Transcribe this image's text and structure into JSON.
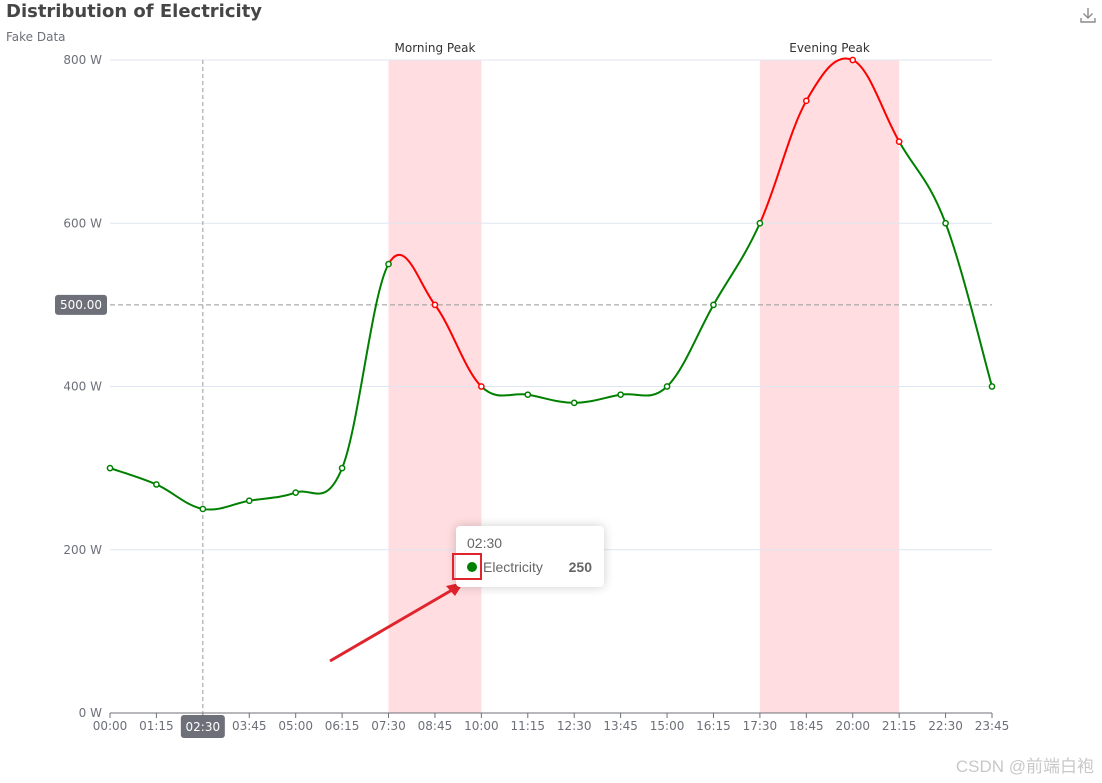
{
  "header": {
    "title": "Distribution of Electricity",
    "subtitle": "Fake Data",
    "download_icon": "download-icon"
  },
  "tooltip": {
    "time": "02:30",
    "series_name": "Electricity",
    "value": "250",
    "dot_color": "#008000"
  },
  "watermark": "CSDN @前端白袍",
  "colors": {
    "normal_line": "#008000",
    "peak_line": "#ff0000",
    "peak_band": "#ffdde0",
    "grid": "#e0e6f1",
    "axis_text": "#6e7079",
    "pointer_label_bg": "#6e7079",
    "annotation_arrow": "#e0242d"
  },
  "chart_data": {
    "type": "line",
    "title": "Distribution of Electricity",
    "subtitle": "Fake Data",
    "smooth": true,
    "x": [
      "00:00",
      "01:15",
      "02:30",
      "03:45",
      "05:00",
      "06:15",
      "07:30",
      "08:45",
      "10:00",
      "11:15",
      "12:30",
      "13:45",
      "15:00",
      "16:15",
      "17:30",
      "18:45",
      "20:00",
      "21:15",
      "22:30",
      "23:45"
    ],
    "x_ticks": [
      "00:00",
      "01:15",
      "02:30",
      "03:45",
      "05:00",
      "06:15",
      "07:30",
      "08:45",
      "10:00",
      "11:15",
      "12:30",
      "13:45",
      "15:00",
      "16:15",
      "17:30",
      "18:45",
      "20:00",
      "21:15",
      "22:30",
      "23:45"
    ],
    "series": [
      {
        "name": "Electricity",
        "values": [
          300,
          280,
          250,
          260,
          270,
          300,
          550,
          500,
          400,
          390,
          380,
          390,
          400,
          500,
          600,
          750,
          800,
          700,
          600,
          400
        ]
      }
    ],
    "ylim": [
      0,
      800
    ],
    "y_ticks": [
      0,
      200,
      400,
      600,
      800
    ],
    "y_unit": "W",
    "mark_areas": [
      {
        "label": "Morning Peak",
        "from": "07:30",
        "to": "10:00"
      },
      {
        "label": "Evening Peak",
        "from": "17:30",
        "to": "21:15"
      }
    ],
    "piecewise_color": {
      "in_peak": "#ff0000",
      "outside": "#008000"
    },
    "mark_line": {
      "y": 500,
      "label": "500.00"
    },
    "axis_pointer": {
      "x": "02:30",
      "label": "02:30"
    },
    "grid": true
  }
}
